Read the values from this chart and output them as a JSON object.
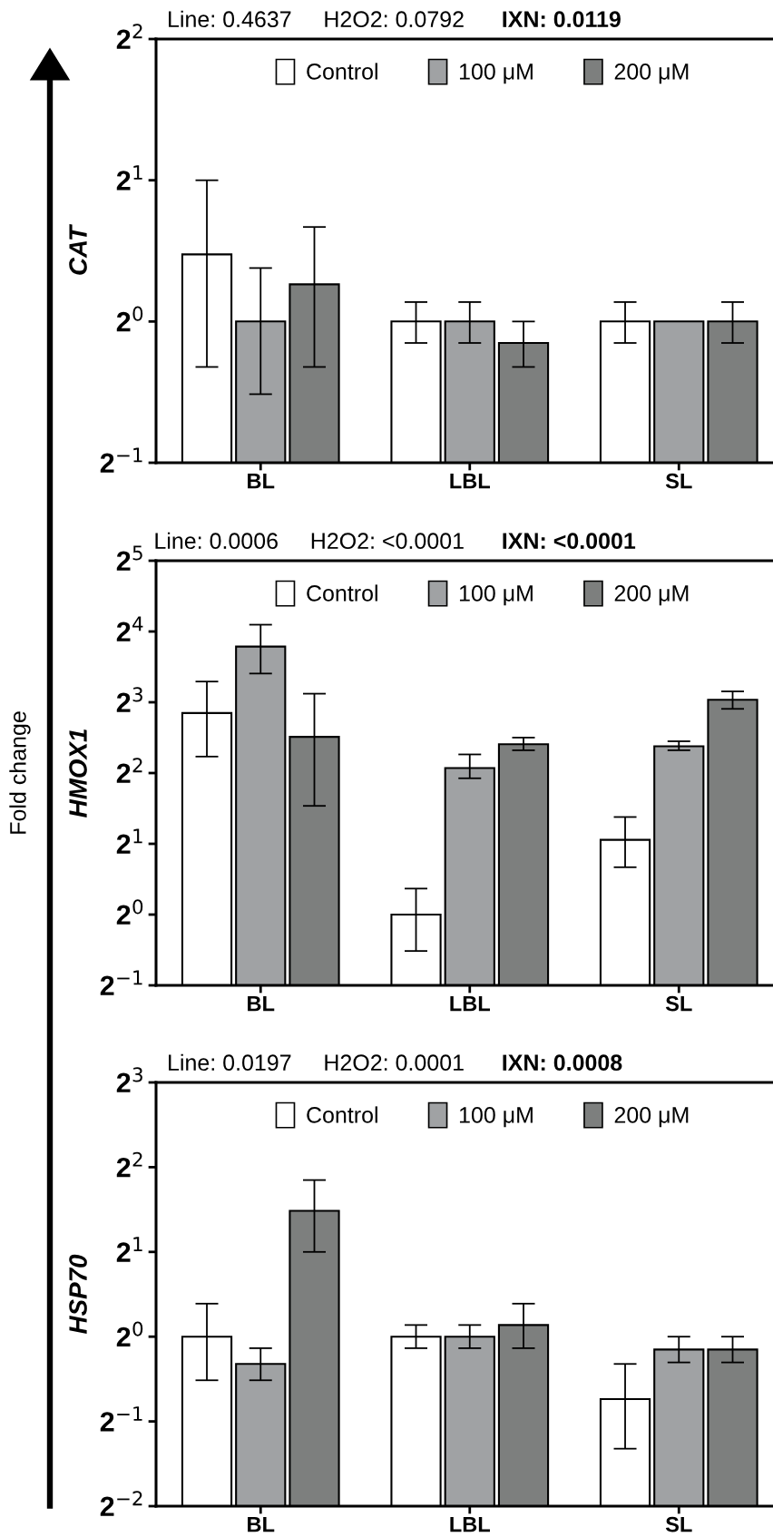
{
  "chart_data": [
    {
      "type": "bar",
      "title": "Line: 0.4637     H2O2: 0.0792",
      "subtitle": "IXN: 0.0119",
      "ylabel": "CAT",
      "categories": [
        "BL",
        "LBL",
        "SL"
      ],
      "log": true,
      "legend": "top",
      "ylim": [
        0.5,
        4
      ],
      "yticks": [
        {
          "value": 0.5,
          "label": "2$^{−1}$"
        },
        {
          "value": 1,
          "label": "2$^{0}$"
        },
        {
          "value": 2,
          "label": "2$^{1}$"
        },
        {
          "value": 4,
          "label": "2$^{2}$"
        }
      ],
      "series": [
        {
          "name": "Control",
          "color": "#ffffff",
          "values": [
            1.39,
            1.0,
            1.0
          ],
          "errors": [
            [
              0.8,
              2.0
            ],
            [
              0.9,
              1.1
            ],
            [
              0.9,
              1.1
            ]
          ]
        },
        {
          "name": "100 μM",
          "color": "#a0a2a4",
          "values": [
            1.0,
            1.0,
            1.0
          ],
          "errors": [
            [
              0.7,
              1.3
            ],
            [
              0.9,
              1.1
            ],
            null
          ]
        },
        {
          "name": "200 μM",
          "color": "#7d7f7e",
          "values": [
            1.2,
            0.9,
            1.0
          ],
          "errors": [
            [
              0.8,
              1.59
            ],
            [
              0.8,
              1.0
            ],
            [
              0.9,
              1.1
            ]
          ]
        }
      ]
    },
    {
      "type": "bar",
      "title": "Line: 0.0006     H2O2: <0.0001",
      "subtitle": "IXN: <0.0001",
      "ylabel": "HMOX1",
      "annotations": [
        "Fold change"
      ],
      "categories": [
        "BL",
        "LBL",
        "SL"
      ],
      "log": true,
      "legend": "top",
      "ylim": [
        0.5,
        32
      ],
      "yticks": [
        {
          "value": 0.5,
          "label": "2$^{−1}$"
        },
        {
          "value": 1,
          "label": "2$^{0}$"
        },
        {
          "value": 2,
          "label": "2$^{1}$"
        },
        {
          "value": 4,
          "label": "2$^{2}$"
        },
        {
          "value": 8,
          "label": "2$^{3}$"
        },
        {
          "value": 16,
          "label": "2$^{4}$"
        },
        {
          "value": 32,
          "label": "2$^{5}$"
        }
      ],
      "series": [
        {
          "name": "Control",
          "color": "#ffffff",
          "values": [
            7.2,
            1.0,
            2.08
          ],
          "errors": [
            [
              4.7,
              9.8
            ],
            [
              0.7,
              1.29
            ],
            [
              1.59,
              2.6
            ]
          ]
        },
        {
          "name": "100 μM",
          "color": "#a0a2a4",
          "values": [
            13.8,
            4.2,
            5.2
          ],
          "errors": [
            [
              10.6,
              17.1
            ],
            [
              3.8,
              4.8
            ],
            [
              5.0,
              5.46
            ]
          ]
        },
        {
          "name": "200 μM",
          "color": "#7d7f7e",
          "values": [
            5.7,
            5.3,
            8.2
          ],
          "errors": [
            [
              2.9,
              8.7
            ],
            [
              5.0,
              5.66
            ],
            [
              7.5,
              8.9
            ]
          ]
        }
      ]
    },
    {
      "type": "bar",
      "title": "Line: 0.0197     H2O2: 0.0001",
      "subtitle": "IXN: 0.0008",
      "ylabel": "HSP70",
      "categories": [
        "BL",
        "LBL",
        "SL"
      ],
      "log": true,
      "legend": "top",
      "ylim": [
        0.25,
        8
      ],
      "yticks": [
        {
          "value": 0.25,
          "label": "2$^{−2}$"
        },
        {
          "value": 0.5,
          "label": "2$^{−1}$"
        },
        {
          "value": 1,
          "label": "2$^{0}$"
        },
        {
          "value": 2,
          "label": "2$^{1}$"
        },
        {
          "value": 4,
          "label": "2$^{2}$"
        },
        {
          "value": 8,
          "label": "2$^{3}$"
        }
      ],
      "series": [
        {
          "name": "Control",
          "color": "#ffffff",
          "values": [
            1.0,
            1.0,
            0.6
          ],
          "errors": [
            [
              0.7,
              1.31
            ],
            [
              0.91,
              1.1
            ],
            [
              0.4,
              0.8
            ]
          ]
        },
        {
          "name": "100 μM",
          "color": "#a0a2a4",
          "values": [
            0.8,
            1.0,
            0.9
          ],
          "errors": [
            [
              0.7,
              0.91
            ],
            [
              0.91,
              1.1
            ],
            [
              0.81,
              1.0
            ]
          ]
        },
        {
          "name": "200 μM",
          "color": "#7d7f7e",
          "values": [
            2.8,
            1.1,
            0.9
          ],
          "errors": [
            [
              2.0,
              3.6
            ],
            [
              0.91,
              1.31
            ],
            [
              0.81,
              1.0
            ]
          ]
        }
      ]
    }
  ]
}
